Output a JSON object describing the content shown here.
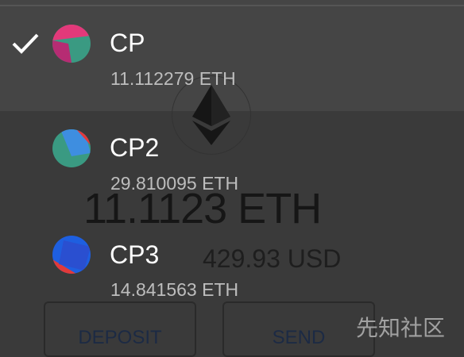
{
  "background": {
    "balance": "11.1123 ETH",
    "fiat": "429.93 USD",
    "buttons": [
      "DEPOSIT",
      "SEND"
    ]
  },
  "accounts": [
    {
      "name": "CP",
      "balance": "11.112279 ETH",
      "selected": true
    },
    {
      "name": "CP2",
      "balance": "29.810095 ETH",
      "selected": false
    },
    {
      "name": "CP3",
      "balance": "14.841563 ETH",
      "selected": false
    }
  ],
  "watermark": "先知社区"
}
